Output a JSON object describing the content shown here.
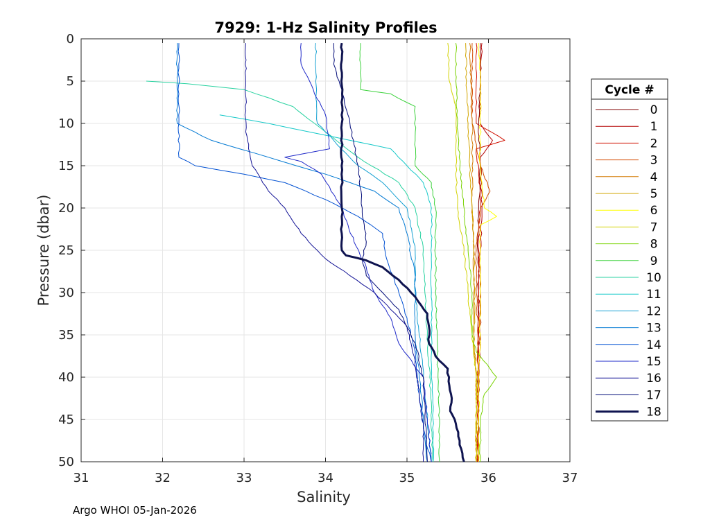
{
  "chart_data": {
    "type": "line",
    "title": "7929: 1-Hz Salinity Profiles",
    "xlabel": "Salinity",
    "ylabel": "Pressure (dbar)",
    "xlim": [
      31,
      37
    ],
    "ylim": [
      0,
      50
    ],
    "y_reversed": true,
    "xticks": [
      31,
      32,
      33,
      34,
      35,
      36,
      37
    ],
    "yticks": [
      0,
      5,
      10,
      15,
      20,
      25,
      30,
      35,
      40,
      45,
      50
    ],
    "grid": true,
    "legend_title": "Cycle #",
    "legend_position": "right",
    "footer": "Argo WHOI 05-Jan-2026",
    "series": [
      {
        "name": "0",
        "color": "#800000",
        "width": 1,
        "points": [
          [
            35.9,
            0.5
          ],
          [
            35.9,
            5
          ],
          [
            35.88,
            10
          ],
          [
            35.9,
            15
          ],
          [
            35.88,
            20
          ],
          [
            35.87,
            25
          ],
          [
            35.88,
            30
          ],
          [
            35.88,
            35
          ],
          [
            35.87,
            40
          ],
          [
            35.88,
            45
          ],
          [
            35.87,
            50
          ]
        ]
      },
      {
        "name": "1",
        "color": "#b40000",
        "width": 1,
        "points": [
          [
            35.92,
            0.5
          ],
          [
            35.9,
            5
          ],
          [
            35.9,
            10
          ],
          [
            36.05,
            12
          ],
          [
            35.9,
            14
          ],
          [
            35.92,
            20
          ],
          [
            35.9,
            25
          ],
          [
            35.9,
            30
          ],
          [
            35.9,
            35
          ],
          [
            35.88,
            40
          ],
          [
            35.88,
            45
          ],
          [
            35.88,
            50
          ]
        ]
      },
      {
        "name": "2",
        "color": "#d11000",
        "width": 1,
        "points": [
          [
            35.85,
            0.5
          ],
          [
            35.85,
            5
          ],
          [
            35.85,
            10
          ],
          [
            36.2,
            12
          ],
          [
            35.85,
            13
          ],
          [
            35.9,
            18
          ],
          [
            35.88,
            25
          ],
          [
            35.88,
            30
          ],
          [
            35.88,
            35
          ],
          [
            35.87,
            40
          ],
          [
            35.87,
            45
          ],
          [
            35.86,
            50
          ]
        ]
      },
      {
        "name": "3",
        "color": "#d24a00",
        "width": 1,
        "points": [
          [
            35.8,
            0.5
          ],
          [
            35.8,
            5
          ],
          [
            35.8,
            10
          ],
          [
            35.9,
            15
          ],
          [
            36.02,
            18
          ],
          [
            35.9,
            20
          ],
          [
            35.85,
            25
          ],
          [
            35.85,
            30
          ],
          [
            35.87,
            35
          ],
          [
            35.87,
            40
          ],
          [
            35.87,
            45
          ],
          [
            35.88,
            50
          ]
        ]
      },
      {
        "name": "4",
        "color": "#d27800",
        "width": 1,
        "points": [
          [
            35.77,
            0.5
          ],
          [
            35.78,
            5
          ],
          [
            35.8,
            10
          ],
          [
            35.8,
            15
          ],
          [
            35.8,
            20
          ],
          [
            35.82,
            25
          ],
          [
            35.82,
            30
          ],
          [
            35.82,
            35
          ],
          [
            35.85,
            40
          ],
          [
            35.85,
            45
          ],
          [
            35.85,
            50
          ]
        ]
      },
      {
        "name": "5",
        "color": "#d2a500",
        "width": 1,
        "points": [
          [
            35.72,
            0.5
          ],
          [
            35.73,
            5
          ],
          [
            35.75,
            10
          ],
          [
            35.77,
            15
          ],
          [
            35.8,
            20
          ],
          [
            35.82,
            25
          ],
          [
            35.83,
            30
          ],
          [
            35.82,
            35
          ],
          [
            35.85,
            40
          ],
          [
            35.85,
            45
          ],
          [
            35.85,
            50
          ]
        ]
      },
      {
        "name": "6",
        "color": "#ffff00",
        "width": 1,
        "points": [
          [
            35.88,
            0.5
          ],
          [
            35.9,
            5
          ],
          [
            35.9,
            10
          ],
          [
            35.9,
            15
          ],
          [
            35.95,
            20
          ],
          [
            36.1,
            21
          ],
          [
            35.9,
            22
          ],
          [
            35.9,
            25
          ],
          [
            35.9,
            30
          ],
          [
            35.9,
            35
          ],
          [
            35.88,
            40
          ],
          [
            35.88,
            45
          ],
          [
            35.88,
            50
          ]
        ]
      },
      {
        "name": "7",
        "color": "#d2d200",
        "width": 1,
        "points": [
          [
            35.5,
            0.5
          ],
          [
            35.52,
            5
          ],
          [
            35.6,
            8
          ],
          [
            35.6,
            15
          ],
          [
            35.62,
            20
          ],
          [
            35.7,
            25
          ],
          [
            35.75,
            30
          ],
          [
            35.8,
            35
          ],
          [
            35.85,
            40
          ],
          [
            35.85,
            45
          ],
          [
            35.85,
            50
          ]
        ]
      },
      {
        "name": "8",
        "color": "#78d200",
        "width": 1,
        "points": [
          [
            35.6,
            0.5
          ],
          [
            35.6,
            5
          ],
          [
            35.62,
            10
          ],
          [
            35.65,
            15
          ],
          [
            35.7,
            20
          ],
          [
            35.75,
            25
          ],
          [
            35.8,
            30
          ],
          [
            35.8,
            35
          ],
          [
            35.85,
            37
          ],
          [
            36.1,
            40
          ],
          [
            35.95,
            42
          ],
          [
            35.9,
            45
          ],
          [
            35.9,
            50
          ]
        ]
      },
      {
        "name": "9",
        "color": "#3cd23c",
        "width": 1,
        "points": [
          [
            34.43,
            0.5
          ],
          [
            34.43,
            6
          ],
          [
            34.8,
            6.5
          ],
          [
            35.1,
            8
          ],
          [
            35.1,
            15
          ],
          [
            35.3,
            17
          ],
          [
            35.35,
            20
          ],
          [
            35.35,
            30
          ],
          [
            35.37,
            35
          ],
          [
            35.38,
            40
          ],
          [
            35.4,
            45
          ],
          [
            35.4,
            50
          ]
        ]
      },
      {
        "name": "10",
        "color": "#28d2a0",
        "width": 1,
        "points": [
          [
            31.8,
            5
          ],
          [
            32.3,
            5.3
          ],
          [
            33.0,
            6
          ],
          [
            33.6,
            8
          ],
          [
            34.0,
            11
          ],
          [
            34.4,
            14
          ],
          [
            34.9,
            17
          ],
          [
            35.1,
            20
          ],
          [
            35.2,
            25
          ],
          [
            35.22,
            30
          ],
          [
            35.25,
            35
          ],
          [
            35.28,
            40
          ],
          [
            35.3,
            45
          ],
          [
            35.32,
            50
          ]
        ]
      },
      {
        "name": "11",
        "color": "#14c8c8",
        "width": 1,
        "points": [
          [
            32.7,
            9
          ],
          [
            33.3,
            10
          ],
          [
            33.8,
            11
          ],
          [
            34.3,
            12
          ],
          [
            34.8,
            13
          ],
          [
            35.0,
            15
          ],
          [
            35.2,
            17
          ],
          [
            35.3,
            20
          ],
          [
            35.3,
            30
          ],
          [
            35.3,
            35
          ],
          [
            35.3,
            40
          ],
          [
            35.32,
            45
          ],
          [
            35.32,
            50
          ]
        ]
      },
      {
        "name": "12",
        "color": "#14a0d2",
        "width": 1,
        "points": [
          [
            33.88,
            0.5
          ],
          [
            33.88,
            5
          ],
          [
            33.9,
            10
          ],
          [
            34.1,
            12
          ],
          [
            34.4,
            15
          ],
          [
            34.7,
            17
          ],
          [
            35.0,
            20
          ],
          [
            35.1,
            25
          ],
          [
            35.1,
            30
          ],
          [
            35.15,
            35
          ],
          [
            35.2,
            40
          ],
          [
            35.25,
            45
          ],
          [
            35.3,
            50
          ]
        ]
      },
      {
        "name": "13",
        "color": "#0078d2",
        "width": 1,
        "points": [
          [
            32.18,
            0.5
          ],
          [
            32.18,
            5
          ],
          [
            32.18,
            10
          ],
          [
            32.6,
            12
          ],
          [
            33.3,
            14
          ],
          [
            34.0,
            16
          ],
          [
            34.6,
            18
          ],
          [
            34.9,
            20
          ],
          [
            35.0,
            23
          ],
          [
            35.1,
            28
          ],
          [
            35.1,
            35
          ],
          [
            35.15,
            40
          ],
          [
            35.2,
            45
          ],
          [
            35.25,
            50
          ]
        ]
      },
      {
        "name": "14",
        "color": "#0050d2",
        "width": 1,
        "points": [
          [
            32.2,
            0.5
          ],
          [
            32.2,
            10
          ],
          [
            32.2,
            14
          ],
          [
            32.4,
            15
          ],
          [
            33.0,
            16
          ],
          [
            33.5,
            17
          ],
          [
            34.0,
            19
          ],
          [
            34.4,
            21
          ],
          [
            34.7,
            23
          ],
          [
            34.75,
            26
          ],
          [
            34.9,
            30
          ],
          [
            35.0,
            33
          ],
          [
            35.1,
            37
          ],
          [
            35.15,
            42
          ],
          [
            35.2,
            46
          ],
          [
            35.3,
            50
          ]
        ]
      },
      {
        "name": "15",
        "color": "#1e28c8",
        "width": 1,
        "points": [
          [
            33.7,
            0.5
          ],
          [
            33.7,
            3
          ],
          [
            33.85,
            6
          ],
          [
            34.0,
            9
          ],
          [
            34.05,
            13
          ],
          [
            33.5,
            14
          ],
          [
            33.7,
            14.5
          ],
          [
            33.95,
            16
          ],
          [
            34.2,
            20
          ],
          [
            34.35,
            24
          ],
          [
            34.5,
            27
          ],
          [
            34.6,
            30
          ],
          [
            34.8,
            33
          ],
          [
            34.9,
            36
          ],
          [
            35.2,
            40
          ],
          [
            35.25,
            45
          ],
          [
            35.3,
            50
          ]
        ]
      },
      {
        "name": "16",
        "color": "#141496",
        "width": 1,
        "points": [
          [
            33.02,
            0.5
          ],
          [
            33.02,
            5
          ],
          [
            33.02,
            11
          ],
          [
            33.1,
            15
          ],
          [
            33.3,
            18
          ],
          [
            33.5,
            20
          ],
          [
            33.7,
            23
          ],
          [
            34.0,
            26
          ],
          [
            34.3,
            28
          ],
          [
            34.6,
            30
          ],
          [
            34.8,
            32
          ],
          [
            35.0,
            34
          ],
          [
            35.1,
            38
          ],
          [
            35.15,
            42
          ],
          [
            35.2,
            46
          ],
          [
            35.2,
            50
          ]
        ]
      },
      {
        "name": "17",
        "color": "#000a78",
        "width": 1,
        "points": [
          [
            34.1,
            0.5
          ],
          [
            34.1,
            3
          ],
          [
            34.2,
            6
          ],
          [
            34.3,
            10
          ],
          [
            34.4,
            15
          ],
          [
            34.45,
            20
          ],
          [
            34.5,
            24
          ],
          [
            34.45,
            26
          ],
          [
            34.5,
            28
          ],
          [
            34.7,
            30
          ],
          [
            34.9,
            32
          ],
          [
            35.1,
            36
          ],
          [
            35.2,
            40
          ],
          [
            35.22,
            45
          ],
          [
            35.25,
            50
          ]
        ]
      },
      {
        "name": "18",
        "color": "#0f1450",
        "width": 3,
        "points": [
          [
            34.2,
            0.5
          ],
          [
            34.2,
            10
          ],
          [
            34.2,
            20
          ],
          [
            34.2,
            25
          ],
          [
            34.25,
            25.6
          ],
          [
            34.5,
            26.2
          ],
          [
            34.7,
            27
          ],
          [
            34.9,
            28.5
          ],
          [
            35.1,
            30.5
          ],
          [
            35.25,
            32.5
          ],
          [
            35.27,
            34
          ],
          [
            35.27,
            36
          ],
          [
            35.35,
            37.5
          ],
          [
            35.5,
            39
          ],
          [
            35.52,
            41
          ],
          [
            35.55,
            42.5
          ],
          [
            35.53,
            44
          ],
          [
            35.6,
            45.5
          ],
          [
            35.63,
            47
          ],
          [
            35.68,
            49
          ],
          [
            35.7,
            50
          ]
        ]
      }
    ]
  }
}
